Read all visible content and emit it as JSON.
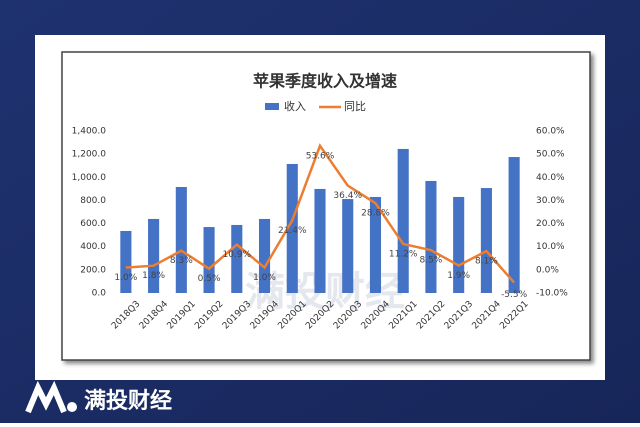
{
  "brand": "满投财经",
  "chart_data": {
    "type": "bar-line",
    "title": "苹果季度收入及增速",
    "categories": [
      "2018Q3",
      "2018Q4",
      "2019Q1",
      "2019Q2",
      "2019Q3",
      "2019Q4",
      "2020Q1",
      "2020Q2",
      "2020Q3",
      "2020Q4",
      "2021Q1",
      "2021Q2",
      "2021Q3",
      "2021Q4",
      "2022Q1"
    ],
    "series": [
      {
        "name": "收入",
        "type": "bar",
        "color": "#4472c4",
        "values": [
          536,
          640,
          916,
          570,
          588,
          640,
          1115,
          899,
          812,
          830,
          1245,
          968,
          830,
          907,
          1175
        ]
      },
      {
        "name": "同比",
        "type": "line",
        "axis": "y2",
        "color": "#ed7d31",
        "values": [
          1.0,
          1.8,
          8.3,
          0.5,
          10.9,
          1.0,
          21.4,
          53.6,
          36.4,
          28.8,
          11.2,
          8.5,
          1.9,
          8.1,
          -5.5
        ],
        "value_labels": [
          "1.0%",
          "1.8%",
          "8.3%",
          "0.5%",
          "10.9%",
          "1.0%",
          "21.4%",
          "53.6%",
          "36.4%",
          "28.8%",
          "11.2%",
          "8.5%",
          "1.9%",
          "8.1%",
          "-5.5%"
        ]
      }
    ],
    "ylim": [
      0,
      1400
    ],
    "yticks": [
      {
        "value": 0,
        "label": "0.0"
      },
      {
        "value": 200,
        "label": "200.0"
      },
      {
        "value": 400,
        "label": "400.0"
      },
      {
        "value": 600,
        "label": "600.0"
      },
      {
        "value": 800,
        "label": "800.0"
      },
      {
        "value": 1000,
        "label": "1,000.0"
      },
      {
        "value": 1200,
        "label": "1,200.0"
      },
      {
        "value": 1400,
        "label": "1,400.0"
      }
    ],
    "y2lim": [
      -10,
      60
    ],
    "y2ticks": [
      {
        "value": -10,
        "label": "-10.0%"
      },
      {
        "value": 0,
        "label": "0.0%"
      },
      {
        "value": 10,
        "label": "10.0%"
      },
      {
        "value": 20,
        "label": "20.0%"
      },
      {
        "value": 30,
        "label": "30.0%"
      },
      {
        "value": 40,
        "label": "40.0%"
      },
      {
        "value": 50,
        "label": "50.0%"
      },
      {
        "value": 60,
        "label": "60.0%"
      }
    ],
    "legend": "top"
  }
}
